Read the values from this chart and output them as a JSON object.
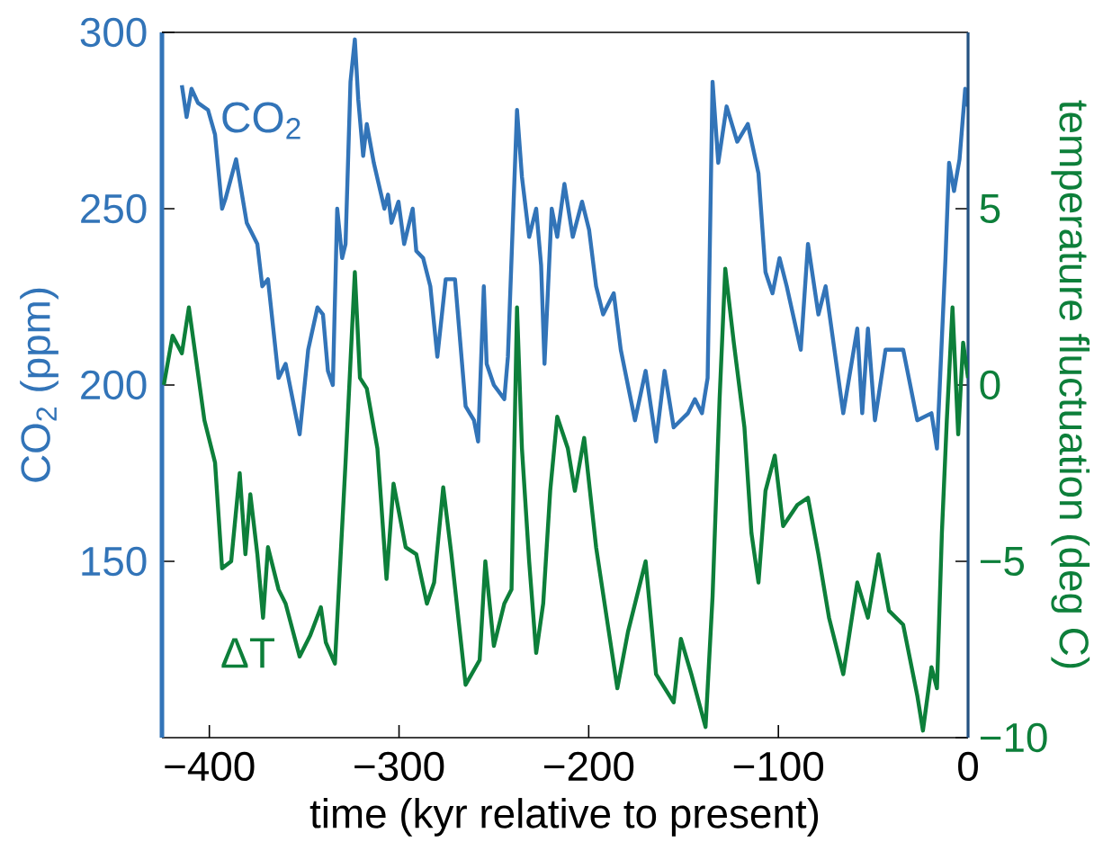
{
  "chart_data": {
    "type": "line",
    "xlabel": "time (kyr relative to present)",
    "ylabel": "CO$_{2}$ (ppm)",
    "y2label": "temperature fluctuation (deg C)",
    "xlim": [
      -425,
      0
    ],
    "ylim": [
      100,
      300
    ],
    "y2lim": [
      -10,
      10
    ],
    "xticks": [
      {
        "value": -400,
        "label": "−400"
      },
      {
        "value": -300,
        "label": "−300"
      },
      {
        "value": -200,
        "label": "−200"
      },
      {
        "value": -100,
        "label": "−100"
      },
      0
    ],
    "yticks": [
      150,
      200,
      250,
      300
    ],
    "y2ticks": [
      {
        "value": -10,
        "label": "−10"
      },
      {
        "value": -5,
        "label": "−5"
      },
      0,
      5
    ],
    "series": [
      {
        "name": "CO$_{2}$",
        "color": "#3274b8",
        "x": [
          -414.5,
          -412,
          -409.4,
          -406,
          -400.7,
          -397,
          -393.3,
          -391.4,
          -385.9,
          -380.3,
          -374.7,
          -372.1,
          -369.1,
          -363.5,
          -359.8,
          -352.4,
          -347.9,
          -343,
          -340.1,
          -337.5,
          -334.9,
          -332.6,
          -330,
          -328.2,
          -325.6,
          -323.3,
          -321.5,
          -318.9,
          -317,
          -313.3,
          -307.7,
          -305.8,
          -304,
          -300.3,
          -297.3,
          -292.8,
          -290.9,
          -287.3,
          -283.5,
          -279.8,
          -275.4,
          -270.5,
          -264.9,
          -260.5,
          -258.3,
          -255.3,
          -253.8,
          -250,
          -244.5,
          -242.6,
          -237.8,
          -235.2,
          -231.4,
          -227.7,
          -225.1,
          -223.3,
          -219.5,
          -216.6,
          -212.8,
          -208.4,
          -203.5,
          -199.8,
          -196.1,
          -192.4,
          -186.8,
          -183.1,
          -175.6,
          -170,
          -164.5,
          -160,
          -155.2,
          -147.7,
          -144,
          -140.3,
          -137.3,
          -134.7,
          -131.7,
          -127.3,
          -121.7,
          -116.1,
          -110.5,
          -106.8,
          -103.1,
          -99.4,
          -95.6,
          -88.2,
          -84.4,
          -78.9,
          -75.1,
          -65.8,
          -58.4,
          -55.8,
          -52.8,
          -49.1,
          -43.5,
          -34.2,
          -26.8,
          -19.3,
          -16.4,
          -11.9,
          -10,
          -7.4,
          -4.5,
          -1.5,
          0
        ],
        "values": [
          285,
          276,
          284,
          280,
          278,
          271,
          250,
          253,
          264,
          246,
          240,
          228,
          230,
          202,
          206,
          186,
          210,
          222,
          220,
          204,
          200,
          250,
          236,
          240,
          286,
          298,
          281,
          265,
          274,
          263,
          250,
          254,
          246,
          252,
          240,
          250,
          238,
          236,
          228,
          208,
          230,
          230,
          194,
          190,
          184,
          228,
          206,
          200,
          196,
          208,
          278,
          259,
          242,
          250,
          234,
          206,
          250,
          242,
          257,
          242,
          252,
          244,
          228,
          220,
          226,
          210,
          190,
          204,
          184,
          204,
          188,
          192,
          196,
          192,
          202,
          286,
          263,
          279,
          269,
          274,
          260,
          232,
          226,
          236,
          228,
          210,
          240,
          220,
          228,
          192,
          216,
          192,
          216,
          190,
          210,
          210,
          190,
          192,
          182,
          236,
          263,
          255,
          264,
          284,
          279
        ]
      },
      {
        "name": "ΔT",
        "color": "#0d7f3a",
        "axis": "y2",
        "x": [
          -424,
          -419.4,
          -414.5,
          -410.8,
          -402.6,
          -397,
          -393.3,
          -388.5,
          -384,
          -381,
          -378.4,
          -374.7,
          -371.7,
          -369.1,
          -363.5,
          -359.8,
          -352.4,
          -346.8,
          -341.2,
          -338.6,
          -333.8,
          -328.2,
          -323.3,
          -320.6,
          -317,
          -311.4,
          -306.6,
          -302.9,
          -296.5,
          -290.9,
          -285.3,
          -281.5,
          -276.7,
          -272.4,
          -264.9,
          -257.5,
          -254.5,
          -250,
          -244.5,
          -240.7,
          -237.8,
          -235.2,
          -231.4,
          -227.7,
          -224,
          -220.3,
          -216.6,
          -211,
          -207.3,
          -202.4,
          -196.1,
          -190.5,
          -184.9,
          -179.3,
          -170,
          -164.5,
          -155.2,
          -151.4,
          -145.9,
          -138.4,
          -134.7,
          -131,
          -128,
          -123.5,
          -117.9,
          -114.2,
          -110.5,
          -106.8,
          -101.9,
          -97.5,
          -90,
          -84.4,
          -78.9,
          -73.3,
          -65.8,
          -58.4,
          -52.8,
          -47.2,
          -41.7,
          -34.2,
          -26.8,
          -23.8,
          -19.3,
          -16.4,
          -13.8,
          -11.2,
          -8.2,
          -5.2,
          -2.6,
          0
        ],
        "values": [
          0,
          1.4,
          0.9,
          2.2,
          -1,
          -2.2,
          -5.2,
          -5,
          -2.5,
          -4.8,
          -3.1,
          -4.8,
          -6.6,
          -4.6,
          -5.8,
          -6.2,
          -7.7,
          -7.1,
          -6.3,
          -7.3,
          -7.9,
          -2.2,
          3.2,
          0.2,
          -0.1,
          -1.8,
          -5.5,
          -2.8,
          -4.6,
          -4.8,
          -6.2,
          -5.6,
          -2.9,
          -4.8,
          -8.5,
          -7.8,
          -5,
          -7.4,
          -6.2,
          -5.8,
          2.2,
          -1.8,
          -5,
          -7.6,
          -6.2,
          -3,
          -0.9,
          -1.8,
          -3,
          -1.5,
          -4.6,
          -6.6,
          -8.6,
          -7,
          -5,
          -8.2,
          -9,
          -7.2,
          -8.2,
          -9.7,
          -6,
          -0.4,
          3.3,
          1.2,
          -1.2,
          -4.2,
          -5.6,
          -3,
          -2,
          -4,
          -3.4,
          -3.2,
          -4.8,
          -6.6,
          -8.2,
          -5.6,
          -6.6,
          -4.8,
          -6.4,
          -6.8,
          -8.8,
          -9.8,
          -8,
          -8.6,
          -4.2,
          -1,
          2.2,
          -1.4,
          1.2,
          0.2
        ]
      }
    ]
  }
}
